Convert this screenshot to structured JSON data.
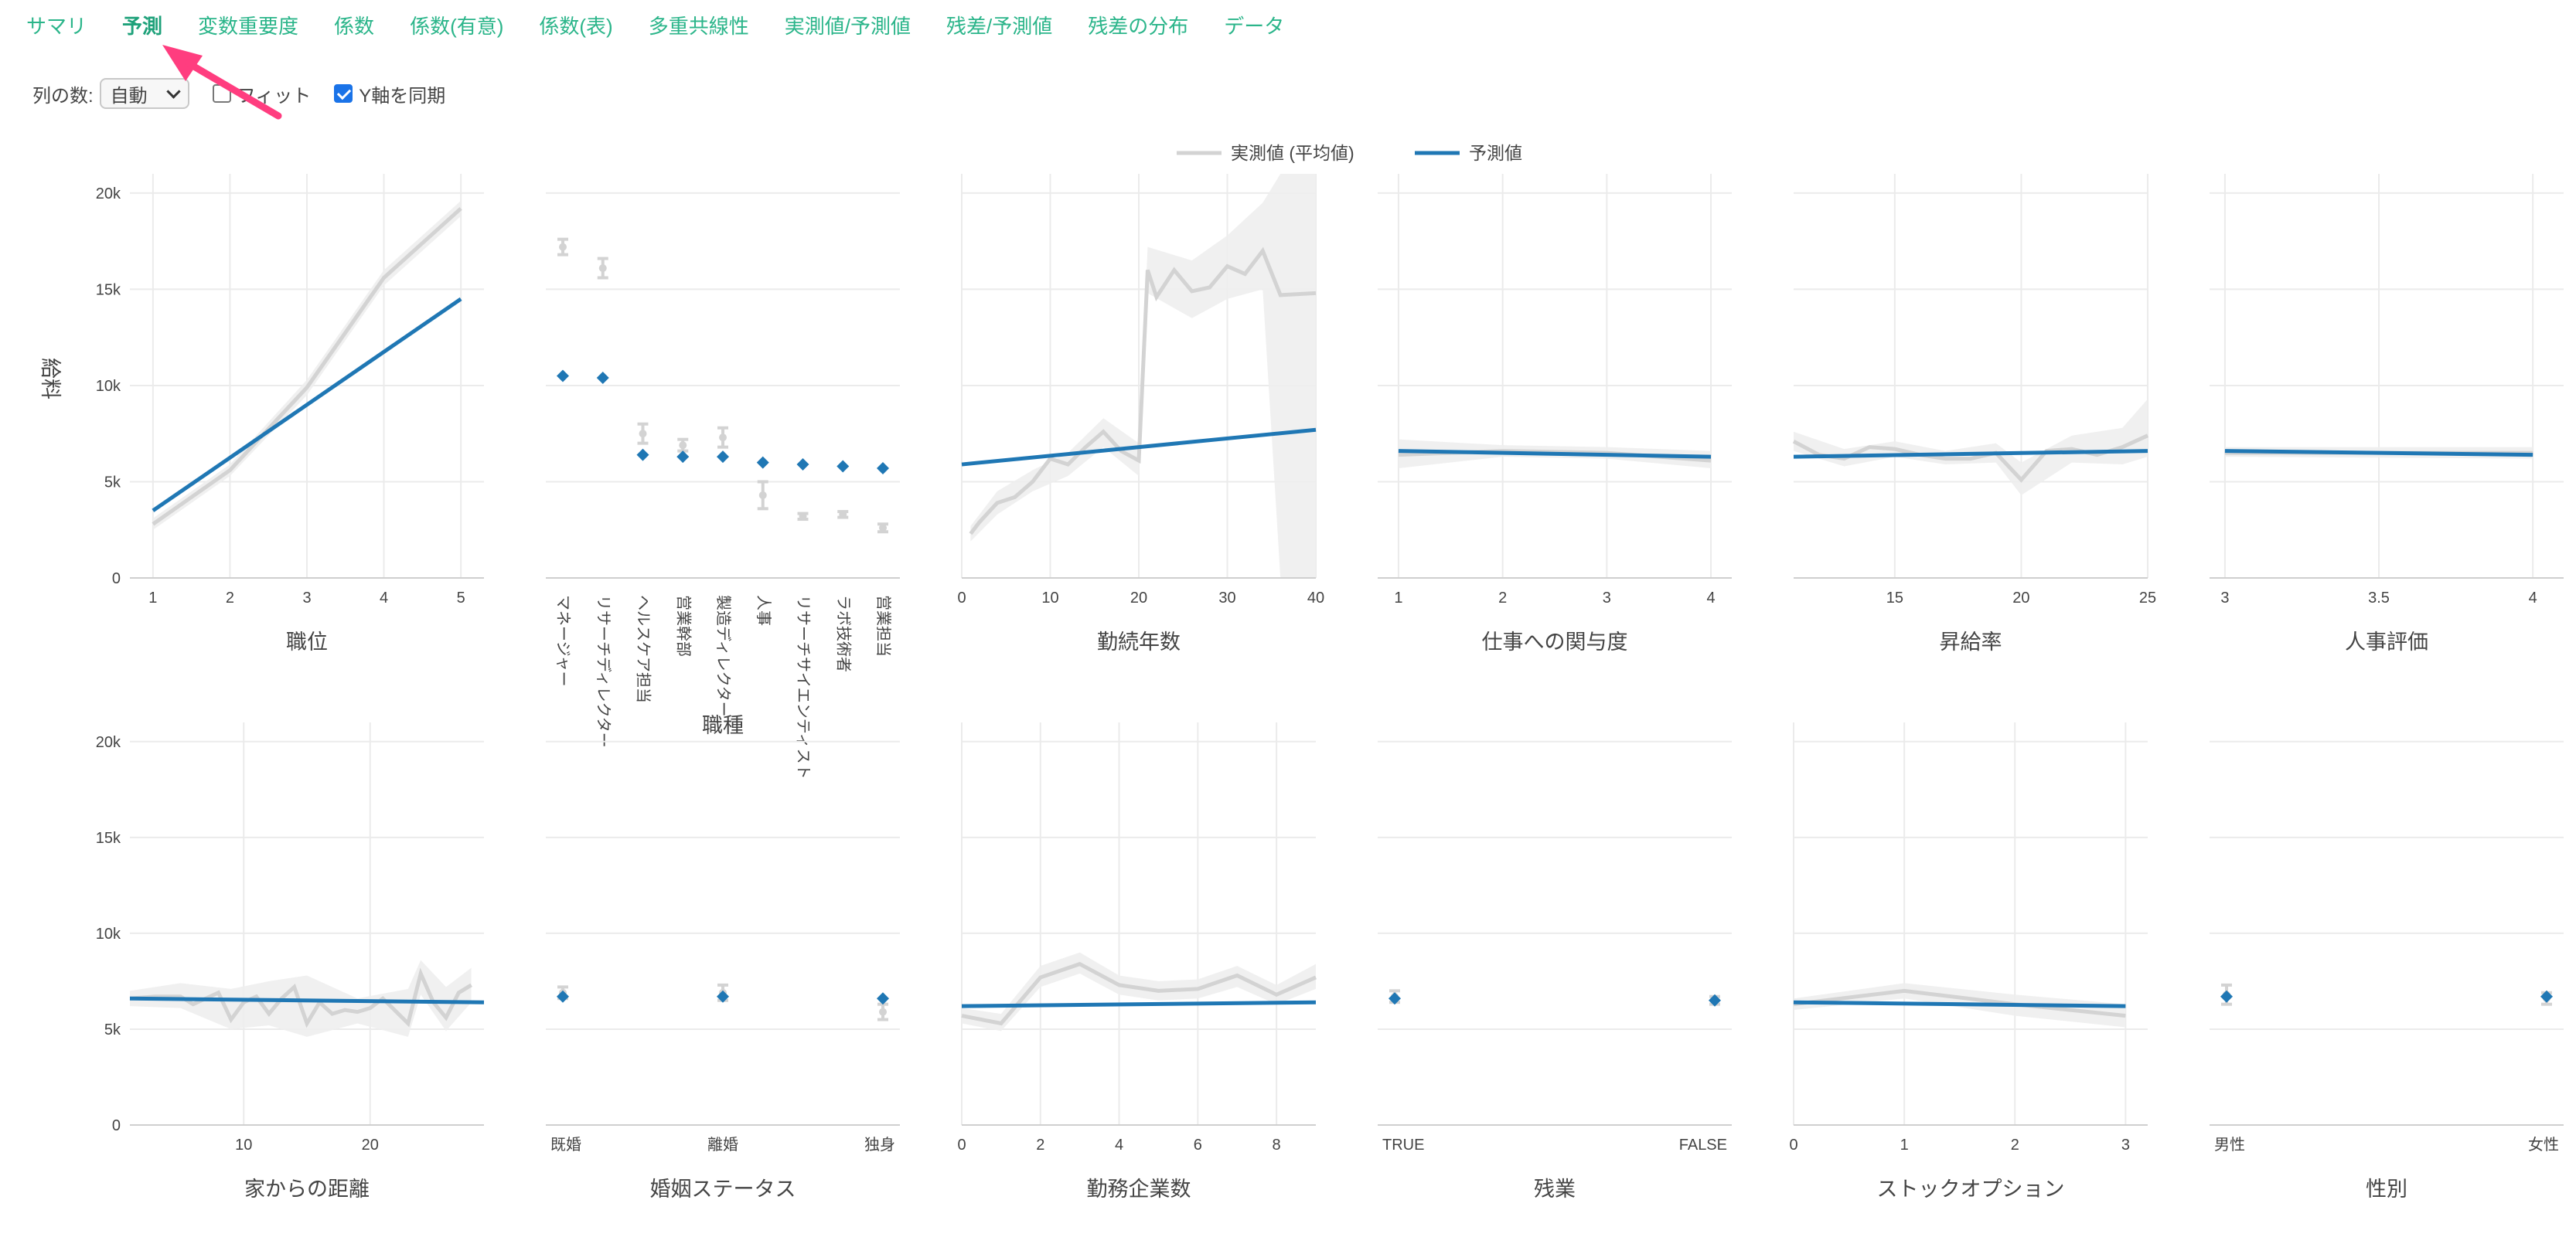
{
  "tabs": [
    "サマリ",
    "予測",
    "変数重要度",
    "係数",
    "係数(有意)",
    "係数(表)",
    "多重共線性",
    "実測値/予測値",
    "残差/予測値",
    "残差の分布",
    "データ"
  ],
  "active_tab": "予測",
  "controls": {
    "columns_label": "列の数:",
    "columns_value": "自動",
    "fit_label": "フィット",
    "fit_checked": false,
    "sync_y_label": "Y軸を同期",
    "sync_y_checked": true
  },
  "legend": {
    "actual": "実測値 (平均値)",
    "predicted": "予測値"
  },
  "colors": {
    "accent": "#2bb58a",
    "predicted": "#1f77b4",
    "actual": "#d3d3d3",
    "band": "#eeeeee",
    "arrow": "#ff3d7f"
  },
  "y_axis": {
    "label": "給料",
    "ticks": [
      "0",
      "5k",
      "10k",
      "15k",
      "20k"
    ],
    "tick_values": [
      0,
      5000,
      10000,
      15000,
      20000
    ],
    "range": [
      0,
      21000
    ]
  },
  "chart_data": [
    {
      "title": "職位",
      "type": "line",
      "xrange": [
        0.7,
        5.3
      ],
      "xticks": [
        1,
        2,
        3,
        4,
        5
      ],
      "predicted": [
        [
          1,
          3500
        ],
        [
          5,
          14500
        ]
      ],
      "actual": [
        [
          1,
          2800
        ],
        [
          2,
          5600
        ],
        [
          3,
          9900
        ],
        [
          4,
          15600
        ],
        [
          5,
          19200
        ]
      ],
      "band": [
        [
          1,
          2500,
          3100
        ],
        [
          2,
          5300,
          5900
        ],
        [
          3,
          9500,
          10300
        ],
        [
          4,
          15200,
          16000
        ],
        [
          5,
          18800,
          19600
        ]
      ]
    },
    {
      "title": "職種",
      "type": "point",
      "categories": [
        "マネージャー",
        "リサーチディレクター",
        "ヘルスケア担当",
        "営業幹部",
        "製造ディレクター",
        "人事",
        "リサーチサイエンティスト",
        "ラボ技術者",
        "営業担当"
      ],
      "predicted": [
        10500,
        10400,
        6400,
        6300,
        6300,
        6000,
        5900,
        5800,
        5700
      ],
      "actual": [
        17200,
        16100,
        7500,
        6900,
        7300,
        4300,
        3200,
        3300,
        2600
      ],
      "actual_err": [
        400,
        500,
        500,
        300,
        500,
        700,
        150,
        150,
        200
      ]
    },
    {
      "title": "勤続年数",
      "type": "line",
      "xrange": [
        0,
        40
      ],
      "xticks": [
        0,
        10,
        20,
        30,
        40
      ],
      "predicted": [
        [
          0,
          5900
        ],
        [
          40,
          7700
        ]
      ],
      "actual": [
        [
          1,
          2300
        ],
        [
          2,
          2900
        ],
        [
          3,
          3400
        ],
        [
          4,
          3900
        ],
        [
          6,
          4200
        ],
        [
          8,
          5000
        ],
        [
          10,
          6200
        ],
        [
          12,
          5900
        ],
        [
          14,
          6800
        ],
        [
          16,
          7600
        ],
        [
          18,
          6600
        ],
        [
          20,
          6100
        ],
        [
          21,
          16000
        ],
        [
          22,
          14600
        ],
        [
          24,
          16000
        ],
        [
          26,
          14900
        ],
        [
          28,
          15100
        ],
        [
          30,
          16200
        ],
        [
          32,
          15800
        ],
        [
          34,
          17000
        ],
        [
          36,
          14700
        ],
        [
          40,
          14800
        ]
      ],
      "band": [
        [
          1,
          1900,
          2700
        ],
        [
          4,
          3300,
          4500
        ],
        [
          8,
          4500,
          5600
        ],
        [
          12,
          5300,
          6500
        ],
        [
          16,
          6800,
          8300
        ],
        [
          20,
          5300,
          7000
        ],
        [
          21,
          14800,
          17200
        ],
        [
          26,
          13500,
          16500
        ],
        [
          30,
          14500,
          17800
        ],
        [
          34,
          15000,
          19500
        ],
        [
          36,
          0,
          21000
        ],
        [
          40,
          0,
          21000
        ]
      ]
    },
    {
      "title": "仕事への関与度",
      "type": "line",
      "xrange": [
        0.8,
        4.2
      ],
      "xticks": [
        1,
        2,
        3,
        4
      ],
      "predicted": [
        [
          1,
          6600
        ],
        [
          4,
          6300
        ]
      ],
      "actual": [
        [
          1,
          6400
        ],
        [
          2,
          6600
        ],
        [
          3,
          6500
        ],
        [
          4,
          6100
        ]
      ],
      "band": [
        [
          1,
          5700,
          7200
        ],
        [
          2,
          6300,
          6900
        ],
        [
          3,
          6200,
          6800
        ],
        [
          4,
          5700,
          6600
        ]
      ]
    },
    {
      "title": "昇給率",
      "type": "line",
      "xrange": [
        11,
        25
      ],
      "xticks": [
        15,
        20,
        25
      ],
      "predicted": [
        [
          11,
          6300
        ],
        [
          25,
          6600
        ]
      ],
      "actual": [
        [
          11,
          7100
        ],
        [
          12,
          6400
        ],
        [
          13,
          6200
        ],
        [
          14,
          6800
        ],
        [
          15,
          6700
        ],
        [
          16,
          6400
        ],
        [
          17,
          6200
        ],
        [
          18,
          6200
        ],
        [
          19,
          6500
        ],
        [
          20,
          5100
        ],
        [
          21,
          6600
        ],
        [
          22,
          6700
        ],
        [
          23,
          6400
        ],
        [
          24,
          6800
        ],
        [
          25,
          7400
        ]
      ],
      "band": [
        [
          11,
          6600,
          7600
        ],
        [
          13,
          5800,
          6700
        ],
        [
          15,
          6300,
          7100
        ],
        [
          17,
          5900,
          6600
        ],
        [
          19,
          6000,
          7000
        ],
        [
          20,
          4300,
          6000
        ],
        [
          22,
          6000,
          7400
        ],
        [
          24,
          5900,
          7800
        ],
        [
          25,
          6300,
          9300
        ]
      ]
    },
    {
      "title": "人事評価",
      "type": "line",
      "xrange": [
        2.95,
        4.1
      ],
      "xticks": [
        3,
        3.5,
        4
      ],
      "predicted": [
        [
          3,
          6600
        ],
        [
          4,
          6400
        ]
      ],
      "actual": [
        [
          3,
          6500
        ],
        [
          4,
          6500
        ]
      ],
      "band": [
        [
          3,
          6300,
          6800
        ],
        [
          4,
          6200,
          6800
        ]
      ]
    },
    {
      "title": "家からの距離",
      "type": "line",
      "xrange": [
        1,
        29
      ],
      "xticks": [
        10,
        20
      ],
      "predicted": [
        [
          1,
          6600
        ],
        [
          29,
          6400
        ]
      ],
      "actual": [
        [
          1,
          6600
        ],
        [
          3,
          6700
        ],
        [
          5,
          6700
        ],
        [
          6,
          6300
        ],
        [
          7,
          6600
        ],
        [
          8,
          6900
        ],
        [
          9,
          5500
        ],
        [
          10,
          6400
        ],
        [
          11,
          6700
        ],
        [
          12,
          5800
        ],
        [
          13,
          6600
        ],
        [
          14,
          7200
        ],
        [
          15,
          5300
        ],
        [
          16,
          6400
        ],
        [
          17,
          5800
        ],
        [
          18,
          6000
        ],
        [
          19,
          5900
        ],
        [
          20,
          6100
        ],
        [
          21,
          6600
        ],
        [
          23,
          5300
        ],
        [
          24,
          7900
        ],
        [
          25,
          6400
        ],
        [
          26,
          5600
        ],
        [
          27,
          6900
        ],
        [
          28,
          7300
        ]
      ],
      "band": [
        [
          1,
          6200,
          7000
        ],
        [
          5,
          6100,
          7400
        ],
        [
          9,
          5000,
          7100
        ],
        [
          12,
          5200,
          7500
        ],
        [
          15,
          4600,
          7800
        ],
        [
          19,
          5300,
          6600
        ],
        [
          23,
          4600,
          7100
        ],
        [
          24,
          6800,
          8600
        ],
        [
          26,
          4900,
          7200
        ],
        [
          28,
          6400,
          8200
        ]
      ]
    },
    {
      "title": "婚姻ステータス",
      "type": "point",
      "categories": [
        "既婚",
        "離婚",
        "独身"
      ],
      "predicted": [
        6700,
        6700,
        6600
      ],
      "actual": [
        6900,
        6900,
        5900
      ],
      "actual_err": [
        300,
        400,
        400
      ]
    },
    {
      "title": "勤務企業数",
      "type": "line",
      "xrange": [
        0,
        9
      ],
      "xticks": [
        0,
        2,
        4,
        6,
        8
      ],
      "predicted": [
        [
          0,
          6200
        ],
        [
          9,
          6400
        ]
      ],
      "actual": [
        [
          0,
          5700
        ],
        [
          1,
          5300
        ],
        [
          2,
          7700
        ],
        [
          3,
          8400
        ],
        [
          4,
          7300
        ],
        [
          5,
          7000
        ],
        [
          6,
          7100
        ],
        [
          7,
          7800
        ],
        [
          8,
          6800
        ],
        [
          9,
          7700
        ]
      ],
      "band": [
        [
          0,
          5300,
          6100
        ],
        [
          1,
          4900,
          5800
        ],
        [
          2,
          7200,
          8300
        ],
        [
          3,
          7900,
          9000
        ],
        [
          4,
          6800,
          7800
        ],
        [
          5,
          6500,
          7500
        ],
        [
          6,
          6600,
          7600
        ],
        [
          7,
          7200,
          8300
        ],
        [
          8,
          6300,
          7300
        ],
        [
          9,
          7100,
          8400
        ]
      ]
    },
    {
      "title": "残業",
      "type": "point",
      "categories": [
        "TRUE",
        "FALSE"
      ],
      "predicted": [
        6600,
        6500
      ],
      "actual": [
        6700,
        6500
      ],
      "actual_err": [
        300,
        200
      ]
    },
    {
      "title": "ストックオプション",
      "type": "line",
      "xrange": [
        0,
        3.2
      ],
      "xticks": [
        0,
        1,
        2,
        3
      ],
      "predicted": [
        [
          0,
          6400
        ],
        [
          3,
          6200
        ]
      ],
      "actual": [
        [
          0,
          6300
        ],
        [
          1,
          7000
        ],
        [
          2,
          6300
        ],
        [
          3,
          5700
        ]
      ],
      "band": [
        [
          0,
          6000,
          6600
        ],
        [
          1,
          6600,
          7400
        ],
        [
          2,
          5700,
          6800
        ],
        [
          3,
          5100,
          6300
        ]
      ]
    },
    {
      "title": "性別",
      "type": "point",
      "categories": [
        "男性",
        "女性"
      ],
      "predicted": [
        6700,
        6700
      ],
      "actual": [
        6800,
        6600
      ],
      "actual_err": [
        500,
        300
      ]
    }
  ]
}
